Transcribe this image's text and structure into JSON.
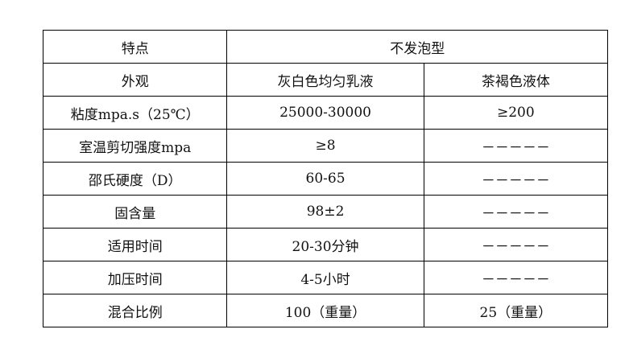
{
  "header": {
    "feature": "特点",
    "type": "不发泡型"
  },
  "rows": [
    {
      "label": "外观",
      "a": "灰白色均匀乳液",
      "b": "茶褐色液体"
    },
    {
      "label": "粘度mpa.s（25℃）",
      "a": "25000-30000",
      "b": "≥200"
    },
    {
      "label": "室温剪切强度mpa",
      "a": "≥8",
      "b": "－－－－－"
    },
    {
      "label": "邵氏硬度（D）",
      "a": "60-65",
      "b": "－－－－－"
    },
    {
      "label": "固含量",
      "a": "98±2",
      "b": "－－－－－"
    },
    {
      "label": "适用时间",
      "a": "20-30分钟",
      "b": "－－－－－"
    },
    {
      "label": "加压时间",
      "a": "4-5小时",
      "b": "－－－－－"
    },
    {
      "label": "混合比例",
      "a": "100（重量）",
      "b": "25（重量）"
    }
  ]
}
